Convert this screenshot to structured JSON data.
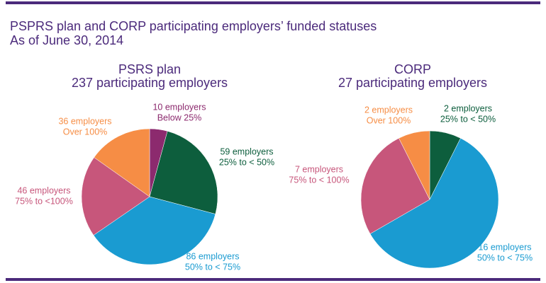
{
  "title": "PSPRS plan and CORP participating employers’ funded statuses",
  "subtitle": "As of June 30, 2014",
  "chart_data": [
    {
      "type": "pie",
      "title": "PSRS plan",
      "subtitle": "237 participating employers",
      "categories": [
        "Below 25%",
        "25% to < 50%",
        "50% to < 75%",
        "75% to <100%",
        "Over 100%"
      ],
      "values": [
        10,
        59,
        86,
        46,
        36
      ],
      "value_labels": [
        "10 employers",
        "59 employers",
        "86 employers",
        "46 employers",
        "36 employers"
      ],
      "colors": [
        "#8c2a6e",
        "#0d5e3d",
        "#1a9bd1",
        "#c7567b",
        "#f68d45"
      ]
    },
    {
      "type": "pie",
      "title": "CORP",
      "subtitle": "27 participating employers",
      "categories": [
        "25% to < 50%",
        "50% to < 75%",
        "75% to < 100%",
        "Over 100%"
      ],
      "values": [
        2,
        16,
        7,
        2
      ],
      "value_labels": [
        "2 employers",
        "16 employers",
        "7 employers",
        "2 employers"
      ],
      "colors": [
        "#0d5e3d",
        "#1a9bd1",
        "#c7567b",
        "#f68d45"
      ]
    }
  ]
}
